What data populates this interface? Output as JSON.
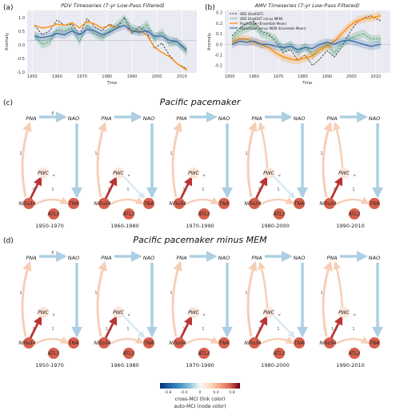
{
  "panels": [
    {
      "label": "(a)",
      "title": "PDV Timeseries (7-yr Low-Pass Filtered)",
      "ylabel": "Anomaly",
      "xlabel": "Time",
      "xlim": [
        1948,
        2016
      ],
      "ylim": [
        -1.2,
        1.1
      ],
      "xticks": [
        "1950",
        "1960",
        "1970",
        "1980",
        "1990",
        "2000",
        "2010"
      ],
      "yticks": [
        "-1.0",
        "-0.5",
        "0.0",
        "0.5",
        "1.0"
      ]
    },
    {
      "label": "(b)",
      "title": "AMV Timeseries (7-yr Low-Pass Filtered)",
      "ylabel": "Anomaly",
      "xlabel": "Time",
      "xlim": [
        1948,
        2016
      ],
      "ylim": [
        -0.27,
        0.32
      ],
      "xticks": [
        "1950",
        "1960",
        "1970",
        "1980",
        "1990",
        "2000",
        "2010"
      ],
      "yticks": [
        "-0.2",
        "-0.1",
        "0.0",
        "0.1",
        "0.2",
        "0.3"
      ],
      "legend": [
        "OBS (HadISST)",
        "OBS (HadISST minus MEM)",
        "Pacemaker (Ensemble Mean)",
        "Pacemaker minus MEM (Ensemble Mean)"
      ]
    }
  ],
  "chart_data": [
    {
      "type": "line",
      "title": "PDV Timeseries (7-yr Low-Pass Filtered)",
      "xlabel": "Time",
      "ylabel": "Anomaly",
      "xlim": [
        1948,
        2016
      ],
      "ylim": [
        -1.2,
        1.1
      ],
      "grid": true,
      "series": [
        {
          "x": [
            1951,
            1954,
            1957,
            1960,
            1963,
            1966,
            1969,
            1972,
            1975,
            1978,
            1981,
            1984,
            1987,
            1990,
            1993,
            1996,
            1999,
            2002,
            2005,
            2008,
            2012
          ],
          "y": [
            0.55,
            0.2,
            0.35,
            0.75,
            0.55,
            0.6,
            0.2,
            0.8,
            0.5,
            0.35,
            0.6,
            0.45,
            0.85,
            0.25,
            0.5,
            0.3,
            -0.3,
            -0.1,
            -0.55,
            -0.85,
            -1.05
          ]
        },
        {
          "x": [
            1951,
            1954,
            1957,
            1960,
            1963,
            1966,
            1969,
            1972,
            1975,
            1978,
            1981,
            1984,
            1987,
            1990,
            1993,
            1996,
            1999,
            2002,
            2005,
            2008,
            2012
          ],
          "y": [
            0.2,
            -0.15,
            -0.05,
            0.4,
            0.35,
            0.45,
            -0.05,
            0.55,
            0.25,
            0.1,
            0.35,
            0.55,
            0.8,
            0.45,
            0.35,
            0.6,
            0.05,
            0.3,
            -0.1,
            -0.05,
            -0.45
          ]
        },
        {
          "x": [
            1951,
            1954,
            1957,
            1960,
            1963,
            1966,
            1969,
            1972,
            1975,
            1978,
            1981,
            1984,
            1987,
            1990,
            1993,
            1996,
            1999,
            2002,
            2005,
            2008,
            2012
          ],
          "y": [
            0.55,
            0.45,
            0.5,
            0.6,
            0.55,
            0.65,
            0.45,
            0.7,
            0.6,
            0.45,
            0.55,
            0.45,
            0.55,
            0.3,
            0.35,
            0.2,
            -0.25,
            -0.45,
            -0.6,
            -0.85,
            -1.1
          ]
        },
        {
          "x": [
            1951,
            1954,
            1957,
            1960,
            1963,
            1966,
            1969,
            1972,
            1975,
            1978,
            1981,
            1984,
            1987,
            1990,
            1993,
            1996,
            1999,
            2002,
            2005,
            2008,
            2012
          ],
          "y": [
            0.15,
            0.1,
            0.15,
            0.25,
            0.2,
            0.35,
            0.2,
            0.4,
            0.35,
            0.2,
            0.3,
            0.45,
            0.55,
            0.35,
            0.3,
            0.35,
            0.15,
            0.15,
            0.0,
            -0.05,
            -0.35
          ]
        }
      ]
    },
    {
      "type": "line",
      "title": "AMV Timeseries (7-yr Low-Pass Filtered)",
      "xlabel": "Time",
      "ylabel": "Anomaly",
      "xlim": [
        1948,
        2016
      ],
      "ylim": [
        -0.27,
        0.32
      ],
      "grid": true,
      "legend_position": "top-left",
      "series": [
        {
          "name": "OBS (HadISST)",
          "x": [
            1951,
            1954,
            1957,
            1960,
            1963,
            1966,
            1969,
            1972,
            1975,
            1978,
            1981,
            1984,
            1987,
            1990,
            1993,
            1996,
            1999,
            2002,
            2005,
            2008,
            2012
          ],
          "y": [
            0.08,
            0.15,
            0.2,
            0.22,
            0.12,
            0.1,
            0.02,
            -0.08,
            -0.05,
            -0.15,
            -0.1,
            -0.2,
            -0.14,
            -0.06,
            -0.12,
            -0.03,
            0.1,
            0.2,
            0.25,
            0.27,
            0.22
          ]
        },
        {
          "name": "OBS (HadISST minus MEM)",
          "x": [
            1951,
            1954,
            1957,
            1960,
            1963,
            1966,
            1969,
            1972,
            1975,
            1978,
            1981,
            1984,
            1987,
            1990,
            1993,
            1996,
            1999,
            2002,
            2005,
            2008,
            2012
          ],
          "y": [
            0.05,
            0.12,
            0.15,
            0.18,
            0.1,
            0.08,
            0.05,
            -0.05,
            0.0,
            -0.08,
            -0.02,
            -0.1,
            -0.05,
            0.0,
            -0.08,
            0.0,
            0.05,
            0.08,
            0.1,
            0.05,
            0.05
          ]
        },
        {
          "name": "Pacemaker (Ensemble Mean)",
          "x": [
            1951,
            1954,
            1957,
            1960,
            1963,
            1966,
            1969,
            1972,
            1975,
            1978,
            1981,
            1984,
            1987,
            1990,
            1993,
            1996,
            1999,
            2002,
            2005,
            2008,
            2012
          ],
          "y": [
            0.02,
            0.05,
            0.05,
            0.02,
            0.0,
            -0.03,
            -0.08,
            -0.12,
            -0.14,
            -0.15,
            -0.13,
            -0.11,
            -0.05,
            -0.02,
            0.03,
            0.1,
            0.17,
            0.22,
            0.24,
            0.25,
            0.27
          ]
        },
        {
          "name": "Pacemaker minus MEM (Ensemble Mean)",
          "x": [
            1951,
            1954,
            1957,
            1960,
            1963,
            1966,
            1969,
            1972,
            1975,
            1978,
            1981,
            1984,
            1987,
            1990,
            1993,
            1996,
            1999,
            2002,
            2005,
            2008,
            2012
          ],
          "y": [
            0.0,
            0.03,
            0.02,
            0.03,
            0.0,
            0.0,
            -0.02,
            -0.03,
            -0.02,
            -0.05,
            -0.03,
            -0.04,
            0.0,
            0.02,
            0.0,
            0.03,
            0.04,
            0.02,
            0.0,
            -0.02,
            0.0
          ]
        }
      ]
    }
  ],
  "graphs": {
    "rows": [
      {
        "label": "(c)",
        "title": "Pacific pacemaker",
        "periods": [
          "1950-1970",
          "1960-1980",
          "1970-1990",
          "1980-2000",
          "1990-2010"
        ],
        "lags": [
          {
            "pna_nao": "6",
            "pwc": "1",
            "nino": "1"
          },
          {
            "pna_nao": "",
            "pwc": "1",
            "nino": "1"
          },
          {
            "pna_nao": "",
            "pwc": "1",
            "nino": "1"
          },
          {
            "pna_nao": "",
            "pwc": "1",
            "nino": "1"
          },
          {
            "pna_nao": "",
            "pwc": "1",
            "nino": "1"
          }
        ]
      },
      {
        "label": "(d)",
        "title": "Pacific pacemaker minus MEM",
        "periods": [
          "1950-1970",
          "1960-1980",
          "1970-1990",
          "1980-2000",
          "1990-2010"
        ],
        "lags": [
          {
            "pna_nao": "6",
            "pwc": "1",
            "nino": "1"
          },
          {
            "pna_nao": "",
            "pwc": "1",
            "nino": "1,2"
          },
          {
            "pna_nao": "",
            "pwc": "1",
            "nino": "1"
          },
          {
            "pna_nao": "",
            "pwc": "1",
            "nino": "1"
          },
          {
            "pna_nao": "",
            "pwc": "1",
            "nino": "1,2"
          }
        ]
      }
    ],
    "nodes": {
      "pna": "PNA",
      "nao": "NAO",
      "pwc": "PWC",
      "pwc_sub": "u",
      "nino": "Niño34",
      "tna": "TNA",
      "atl3": "ATL3"
    }
  },
  "colorbar": {
    "ticks": [
      "-0.8",
      "-0.4",
      "0",
      "0.4",
      "0.8"
    ],
    "label1": "cross-MCI (link color)",
    "label2": "auto-MCI (node color)",
    "colors": [
      "#08306b",
      "#2166ac",
      "#4393c3",
      "#92c5de",
      "#d1e5f0",
      "#fddbc7",
      "#f4a582",
      "#d6604d",
      "#b2182b",
      "#67001f"
    ]
  },
  "colors": {
    "obs": "#222222",
    "obs_minus": "#3a9a5a",
    "pacemaker": "#ff8c00",
    "pacemaker_minus": "#3b6fa8",
    "plot_bg": "#eaeaf2",
    "link_blue": "#a9cde3",
    "link_peach": "#f6cdb4",
    "link_red": "#b82a2a",
    "node_red": "#d6604d",
    "node_pale": "#fbe3d6"
  }
}
